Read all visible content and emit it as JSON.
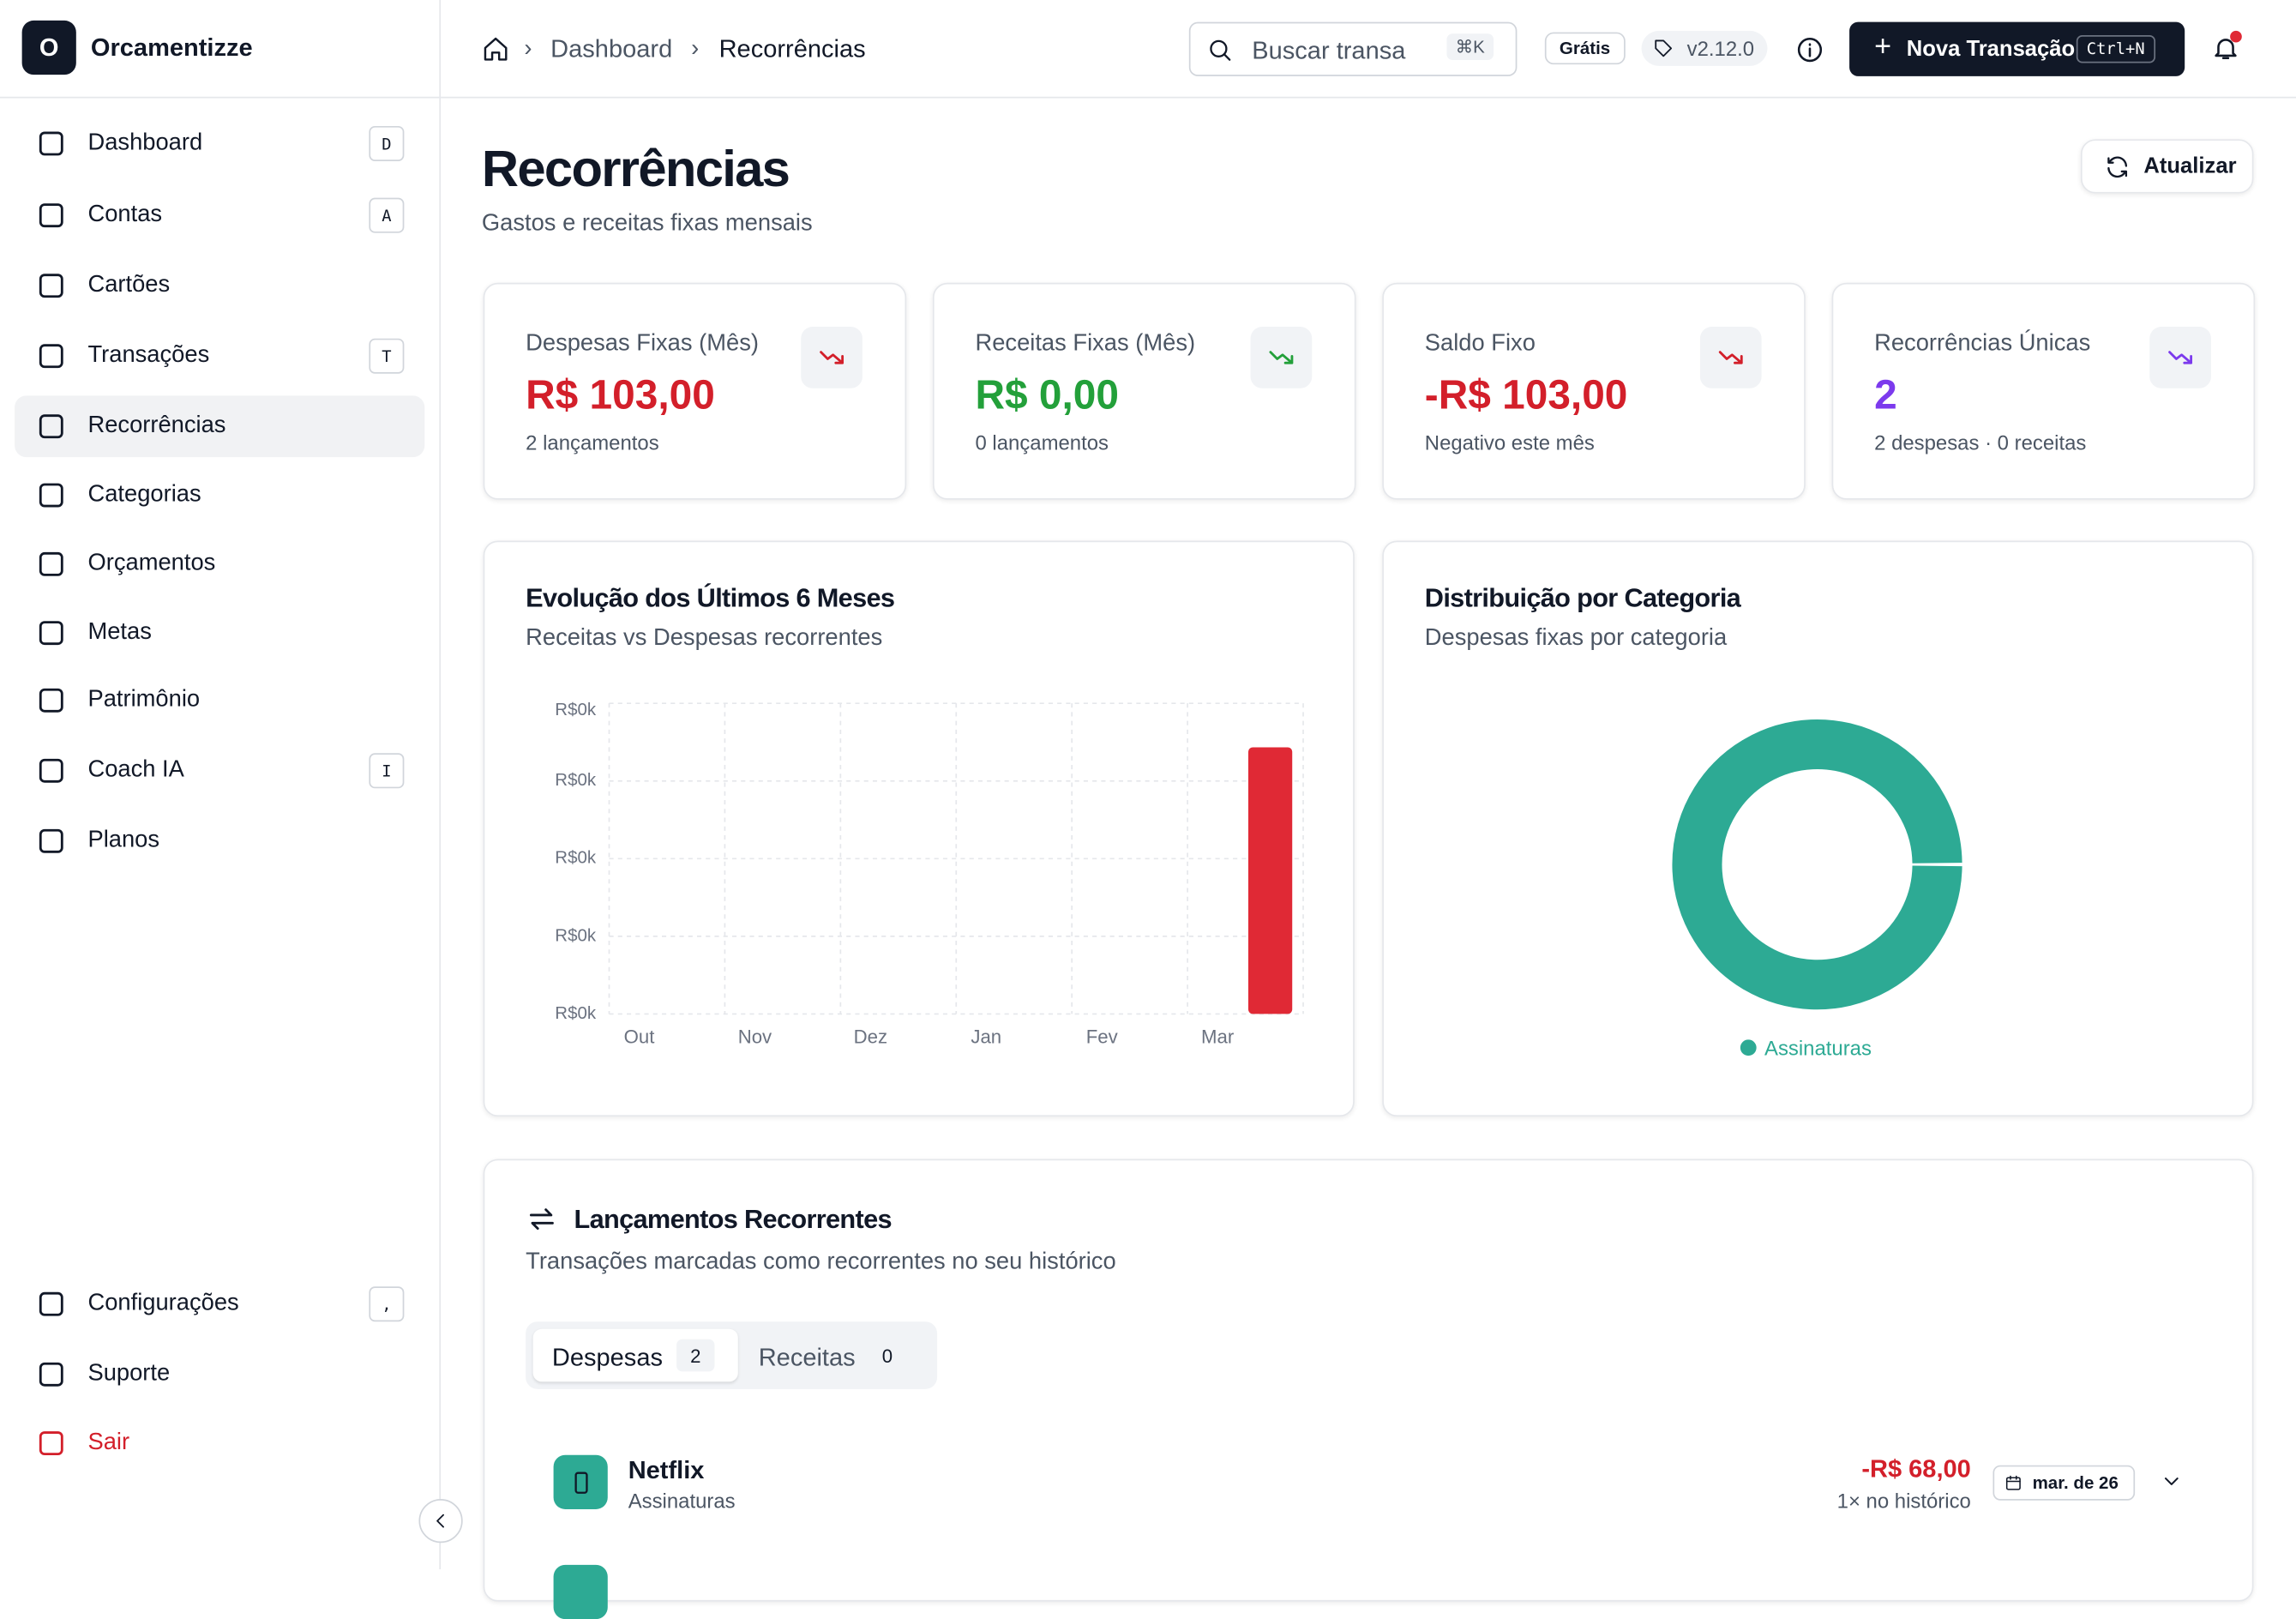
{
  "sidebar": {
    "logo": "O",
    "brand": "Orcamentizze",
    "nav": [
      {
        "label": "Dashboard",
        "key": "D"
      },
      {
        "label": "Contas",
        "key": "A"
      },
      {
        "label": "Cartões"
      },
      {
        "label": "Transações",
        "key": "T"
      },
      {
        "label": "Recorrências"
      },
      {
        "label": "Categorias"
      },
      {
        "label": "Orçamentos"
      },
      {
        "label": "Metas"
      },
      {
        "label": "Patrimônio"
      },
      {
        "label": "Coach IA",
        "key": "I"
      },
      {
        "label": "Planos"
      }
    ],
    "bottom": [
      {
        "label": "Configurações",
        "key": ","
      },
      {
        "label": "Suporte"
      },
      {
        "label": "Sair"
      }
    ]
  },
  "header": {
    "breadcrumb": [
      "Dashboard",
      "Recorrências"
    ],
    "search": "Buscar transa",
    "search_key": "⌘K",
    "plan": "Grátis",
    "version": "v2.12.0",
    "new_button": "Nova Transação",
    "new_key": "Ctrl+N"
  },
  "page": {
    "title": "Recorrências",
    "subtitle": "Gastos e receitas fixas mensais",
    "refresh": "Atualizar"
  },
  "stats": [
    {
      "label": "Despesas Fixas (Mês)",
      "value": "R$ 103,00",
      "note": "2 lançamentos",
      "color": "#d31f2a"
    },
    {
      "label": "Receitas Fixas (Mês)",
      "value": "R$ 0,00",
      "note": "0 lançamentos",
      "color": "#23a03a"
    },
    {
      "label": "Saldo Fixo",
      "value": "-R$ 103,00",
      "note": "Negativo este mês",
      "color": "#d31f2a"
    },
    {
      "label": "Recorrências Únicas",
      "value": 2,
      "note": "2 despesas · 0 receitas",
      "color": "#7c3aed"
    }
  ],
  "evolution_chart": {
    "type": "bar",
    "title": "Evolução dos Últimos 6 Meses",
    "subtitle": "Receitas vs Despesas recorrentes",
    "categories": [
      "Out",
      "Nov",
      "Dez",
      "Jan",
      "Fev",
      "Mar"
    ],
    "values": [
      0,
      0,
      0,
      0,
      0,
      103
    ],
    "color": "#e02935",
    "ylim": [
      0,
      120
    ],
    "yticks": [
      {
        "value": 0,
        "label": "R$0k"
      },
      {
        "value": 30,
        "label": "R$0k"
      },
      {
        "value": 60,
        "label": "R$0k"
      },
      {
        "value": 90,
        "label": "R$0k"
      },
      {
        "value": 120,
        "label": "R$0k"
      }
    ],
    "grid": true
  },
  "category_chart": {
    "type": "donut",
    "title": "Distribuição por Categoria",
    "subtitle": "Despesas fixas por categoria",
    "categories": [
      "Assinaturas"
    ],
    "values": [
      103
    ],
    "colors": [
      "#2daa94"
    ]
  },
  "recurring": {
    "title": "Lançamentos Recorrentes",
    "subtitle": "Transações marcadas como recorrentes no seu histórico",
    "tabs": [
      {
        "label": "Despesas",
        "count": 2
      },
      {
        "label": "Receitas",
        "count": 0
      }
    ],
    "items": [
      {
        "name": "Netflix",
        "category": "Assinaturas",
        "amount": "-R$ 68,00",
        "history": "1× no histórico",
        "date": "mar. de 26"
      }
    ]
  }
}
